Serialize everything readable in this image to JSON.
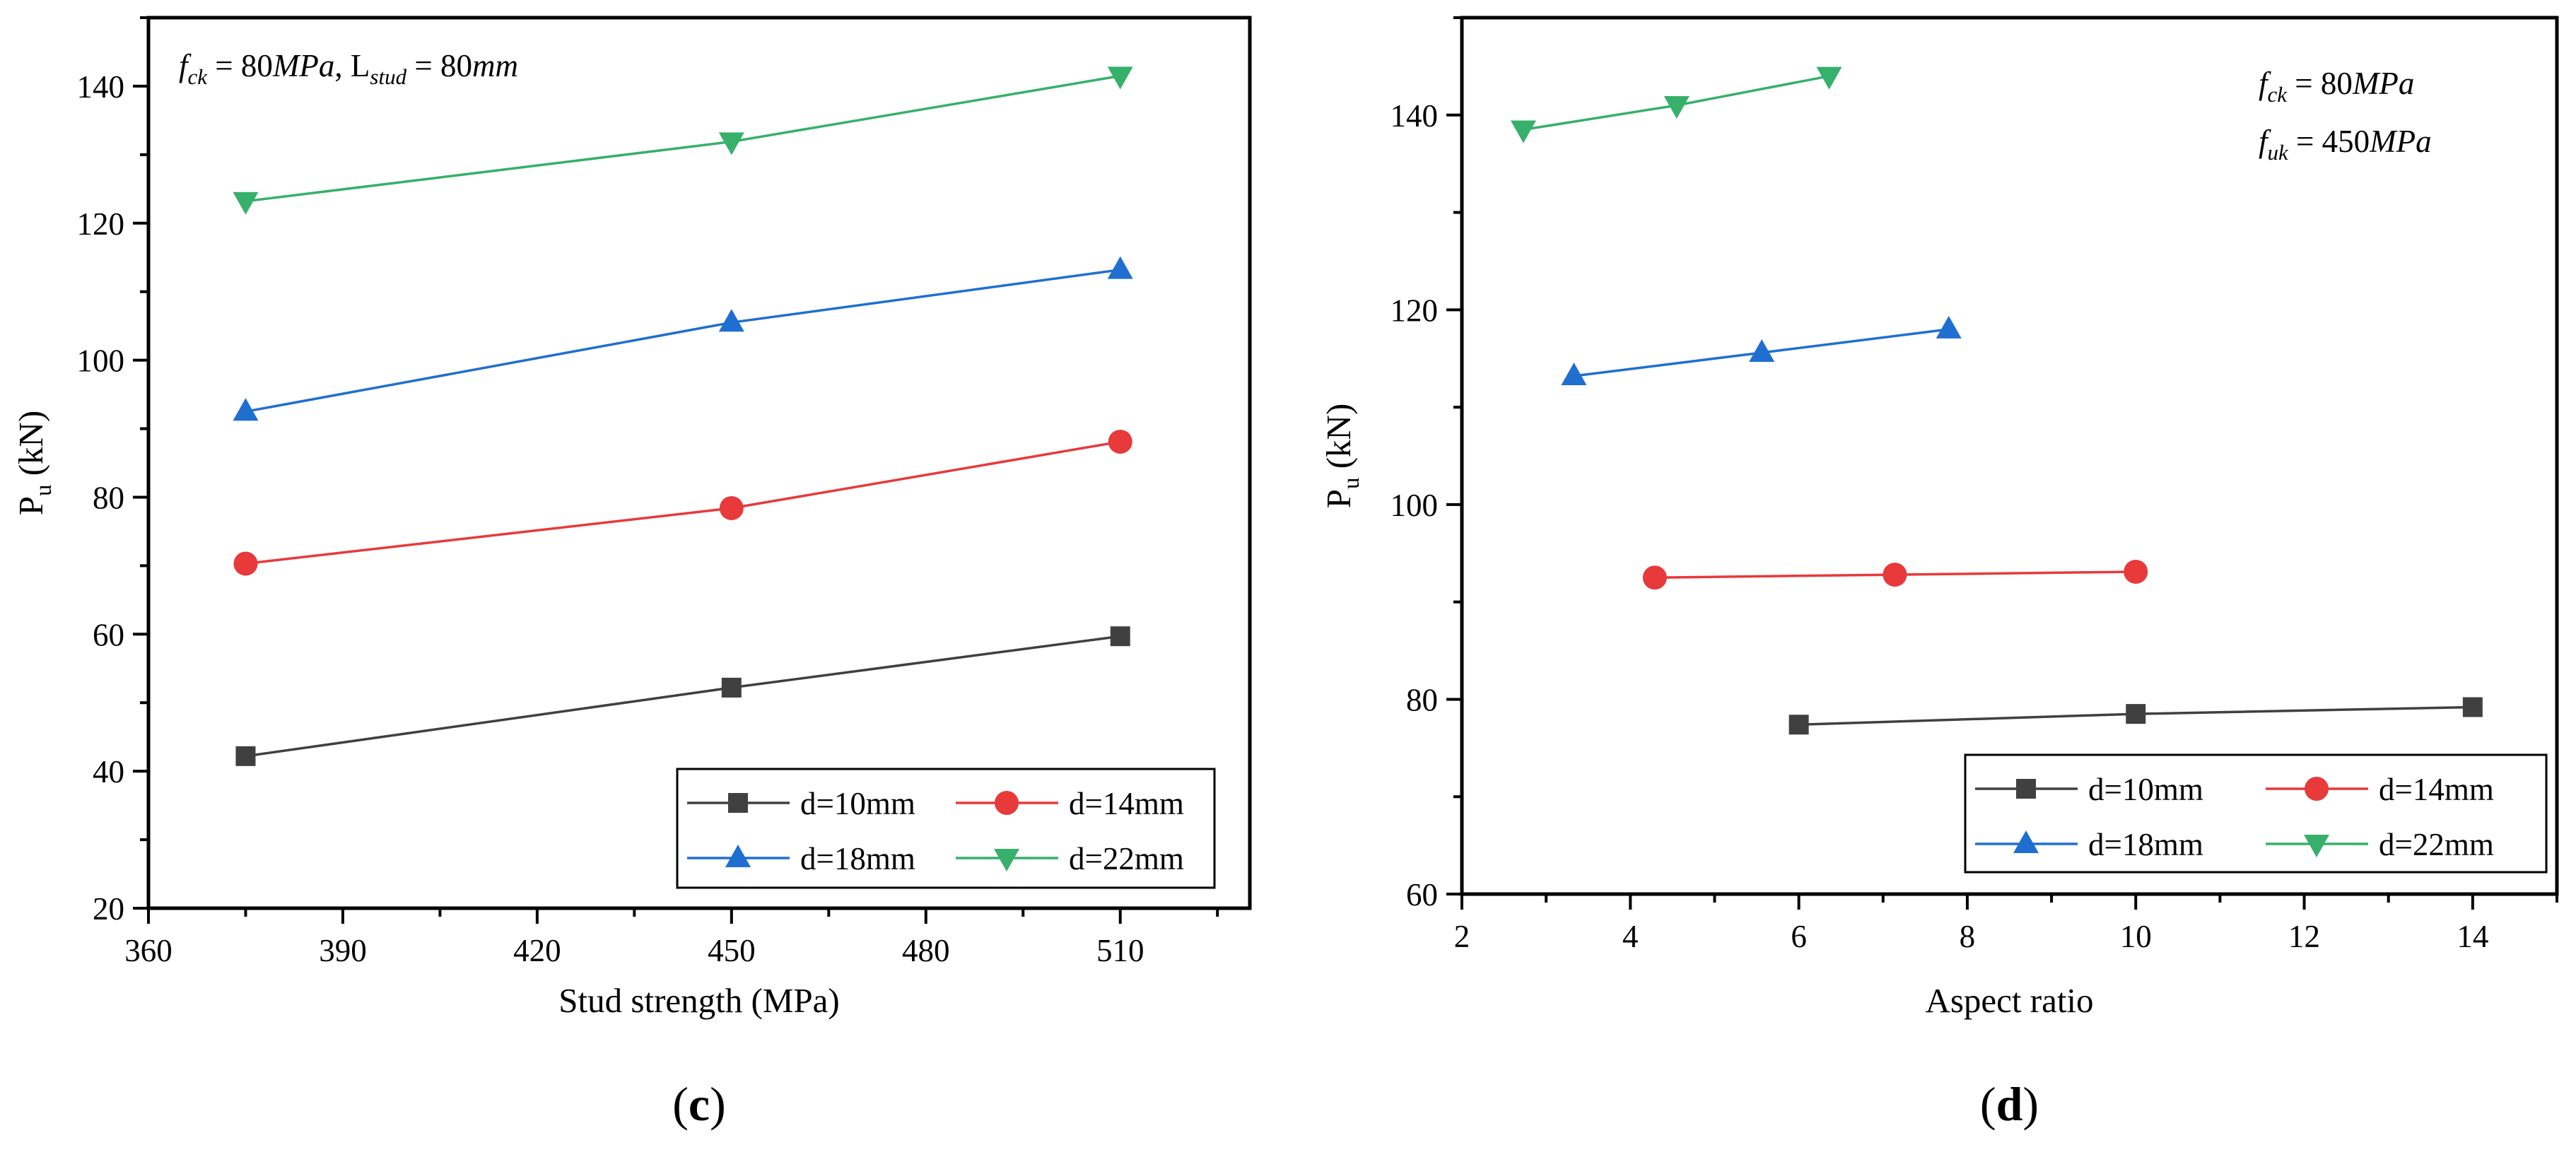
{
  "chart_data": [
    {
      "id": "c",
      "type": "line",
      "panel_label": "c",
      "xlabel": "Stud strength (MPa)",
      "ylabel_main": "P",
      "ylabel_sub": "u",
      "ylabel_rest": " (kN)",
      "xlim": [
        360,
        530
      ],
      "ylim": [
        20,
        150
      ],
      "xticks": [
        360,
        390,
        420,
        450,
        480,
        510
      ],
      "yticks": [
        20,
        40,
        60,
        80,
        100,
        120,
        140
      ],
      "annotation": {
        "lines": [
          [
            {
              "t": "f",
              "italic": true
            },
            {
              "t": "ck",
              "italic": true,
              "sub": true
            },
            {
              "t": " = 80"
            },
            {
              "t": "MPa",
              "italic": true
            },
            {
              "t": ", L"
            },
            {
              "t": "stud",
              "italic": true,
              "sub": true
            },
            {
              "t": " = 80"
            },
            {
              "t": "mm",
              "italic": true
            }
          ]
        ]
      },
      "series": [
        {
          "name": "d=10mm",
          "color": "#404040",
          "marker": "square",
          "x": [
            375,
            450,
            510
          ],
          "y": [
            42.2,
            52.2,
            59.7
          ]
        },
        {
          "name": "d=14mm",
          "color": "#e8393b",
          "marker": "circle",
          "x": [
            375,
            450,
            510
          ],
          "y": [
            70.3,
            78.4,
            88.1
          ]
        },
        {
          "name": "d=18mm",
          "color": "#1f6fd1",
          "marker": "triangle-up",
          "x": [
            375,
            450,
            510
          ],
          "y": [
            92.5,
            105.5,
            113.2
          ]
        },
        {
          "name": "d=22mm",
          "color": "#36b06a",
          "marker": "triangle-down",
          "x": [
            375,
            450,
            510
          ],
          "y": [
            123.2,
            131.9,
            141.5
          ]
        }
      ]
    },
    {
      "id": "d",
      "type": "line",
      "panel_label": "d",
      "xlabel": "Aspect ratio",
      "ylabel_main": "P",
      "ylabel_sub": "u",
      "ylabel_rest": " (kN)",
      "xlim": [
        2,
        15
      ],
      "ylim": [
        60,
        150
      ],
      "xticks": [
        2,
        4,
        6,
        8,
        10,
        12,
        14
      ],
      "yticks": [
        60,
        80,
        100,
        120,
        140
      ],
      "annotation": {
        "lines": [
          [
            {
              "t": "f",
              "italic": true
            },
            {
              "t": "ck",
              "italic": true,
              "sub": true
            },
            {
              "t": " = 80"
            },
            {
              "t": "MPa",
              "italic": true
            }
          ],
          [
            {
              "t": "f",
              "italic": true
            },
            {
              "t": "uk",
              "italic": true,
              "sub": true
            },
            {
              "t": " = 450"
            },
            {
              "t": "MPa",
              "italic": true
            }
          ]
        ]
      },
      "series": [
        {
          "name": "d=10mm",
          "color": "#404040",
          "marker": "square",
          "x": [
            6,
            10,
            14
          ],
          "y": [
            77.4,
            78.5,
            79.2
          ]
        },
        {
          "name": "d=14mm",
          "color": "#e8393b",
          "marker": "circle",
          "x": [
            4.29,
            7.14,
            10
          ],
          "y": [
            92.5,
            92.8,
            93.1
          ]
        },
        {
          "name": "d=18mm",
          "color": "#1f6fd1",
          "marker": "triangle-up",
          "x": [
            3.33,
            5.56,
            7.78
          ],
          "y": [
            113.2,
            115.6,
            118.0
          ]
        },
        {
          "name": "d=22mm",
          "color": "#36b06a",
          "marker": "triangle-down",
          "x": [
            2.73,
            4.55,
            6.36
          ],
          "y": [
            138.5,
            141.0,
            144.0
          ]
        }
      ]
    }
  ]
}
